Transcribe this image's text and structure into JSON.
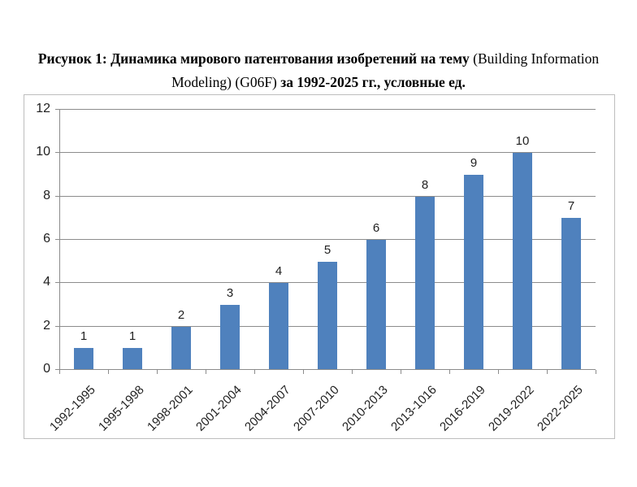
{
  "title": {
    "bold_prefix": "Рисунок 1: Динамика мирового патентования изобретений на тему ",
    "regular_middle": "(Building Information Modeling) (G06F) ",
    "bold_suffix": "за 1992-2025 гг., условные ед."
  },
  "chart_data": {
    "type": "bar",
    "title": "Рисунок 1: Динамика мирового патентования изобретений на тему (Building Information Modeling) (G06F) за 1992-2025 гг., условные ед.",
    "categories": [
      "1992-1995",
      "1995-1998",
      "1998-2001",
      "2001-2004",
      "2004-2007",
      "2007-2010",
      "2010-2013",
      "2013-1016",
      "2016-2019",
      "2019-2022",
      "2022-2025"
    ],
    "values": [
      1,
      1,
      2,
      3,
      4,
      5,
      6,
      8,
      9,
      10,
      7
    ],
    "data_labels": [
      "1",
      "1",
      "2",
      "3",
      "4",
      "5",
      "6",
      "8",
      "9",
      "10",
      "7"
    ],
    "xlabel": "",
    "ylabel": "",
    "ylim": [
      0,
      12
    ],
    "yticks": [
      0,
      2,
      4,
      6,
      8,
      10,
      12
    ],
    "grid": true,
    "legend": false,
    "colors": {
      "bar": "#4F81BD",
      "gridline": "#8C8C8C",
      "axis": "#8C8C8C",
      "frame_border": "#BDBDBD",
      "text": "#1F1F1F"
    }
  }
}
